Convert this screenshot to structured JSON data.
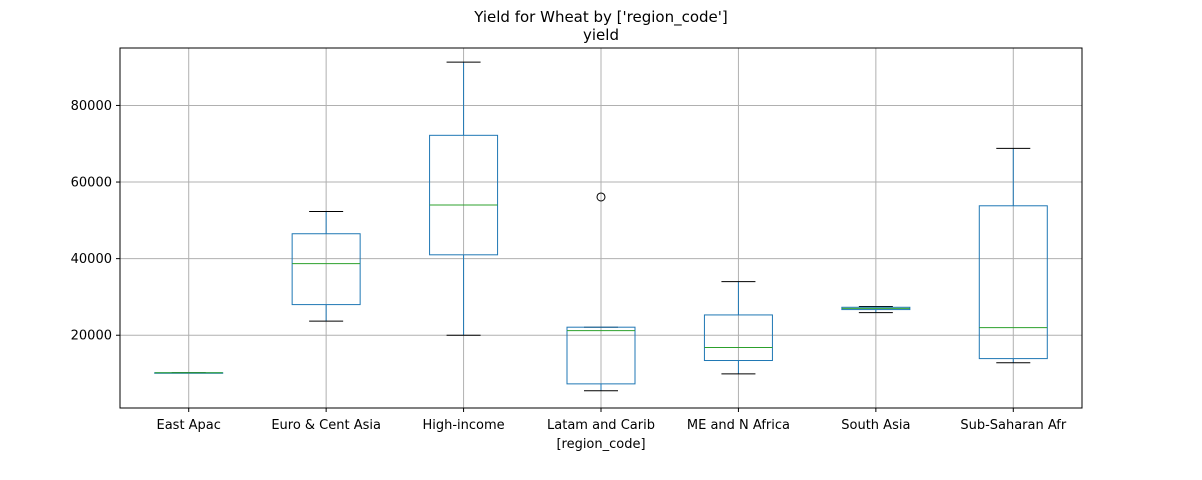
{
  "chart_data": {
    "type": "box",
    "title": "Yield for Wheat by ['region_code']",
    "subtitle": "yield",
    "xlabel": "[region_code]",
    "ylabel": "",
    "ylim": [
      1000,
      95000
    ],
    "yticks": [
      20000,
      40000,
      60000,
      80000
    ],
    "grid": true,
    "categories": [
      "East Apac",
      "Euro & Cent Asia",
      "High-income",
      "Latam and Carib",
      "ME and N Africa",
      "South Asia",
      "Sub-Saharan Afr"
    ],
    "boxes": [
      {
        "category": "East Apac",
        "whisker_low": 10200,
        "q1": 10200,
        "median": 10200,
        "q3": 10200,
        "whisker_high": 10200,
        "outliers": []
      },
      {
        "category": "Euro & Cent Asia",
        "whisker_low": 23700,
        "q1": 28000,
        "median": 38700,
        "q3": 46500,
        "whisker_high": 52300,
        "outliers": []
      },
      {
        "category": "High-income",
        "whisker_low": 20000,
        "q1": 41000,
        "median": 54000,
        "q3": 72200,
        "whisker_high": 91300,
        "outliers": []
      },
      {
        "category": "Latam and Carib",
        "whisker_low": 5500,
        "q1": 7300,
        "median": 21200,
        "q3": 22100,
        "whisker_high": 22100,
        "outliers": [
          56100
        ]
      },
      {
        "category": "ME and N Africa",
        "whisker_low": 9900,
        "q1": 13400,
        "median": 16800,
        "q3": 25300,
        "whisker_high": 34000,
        "outliers": []
      },
      {
        "category": "South Asia",
        "whisker_low": 25900,
        "q1": 26700,
        "median": 27000,
        "q3": 27300,
        "whisker_high": 27500,
        "outliers": []
      },
      {
        "category": "Sub-Saharan Afr",
        "whisker_low": 12800,
        "q1": 13900,
        "median": 22000,
        "q3": 53800,
        "whisker_high": 68800,
        "outliers": []
      }
    ],
    "colors": {
      "box": "#1f77b4",
      "median": "#2ca02c",
      "whisker_cap": "#000000",
      "grid": "#b0b0b0",
      "outlier": "#000000"
    }
  }
}
